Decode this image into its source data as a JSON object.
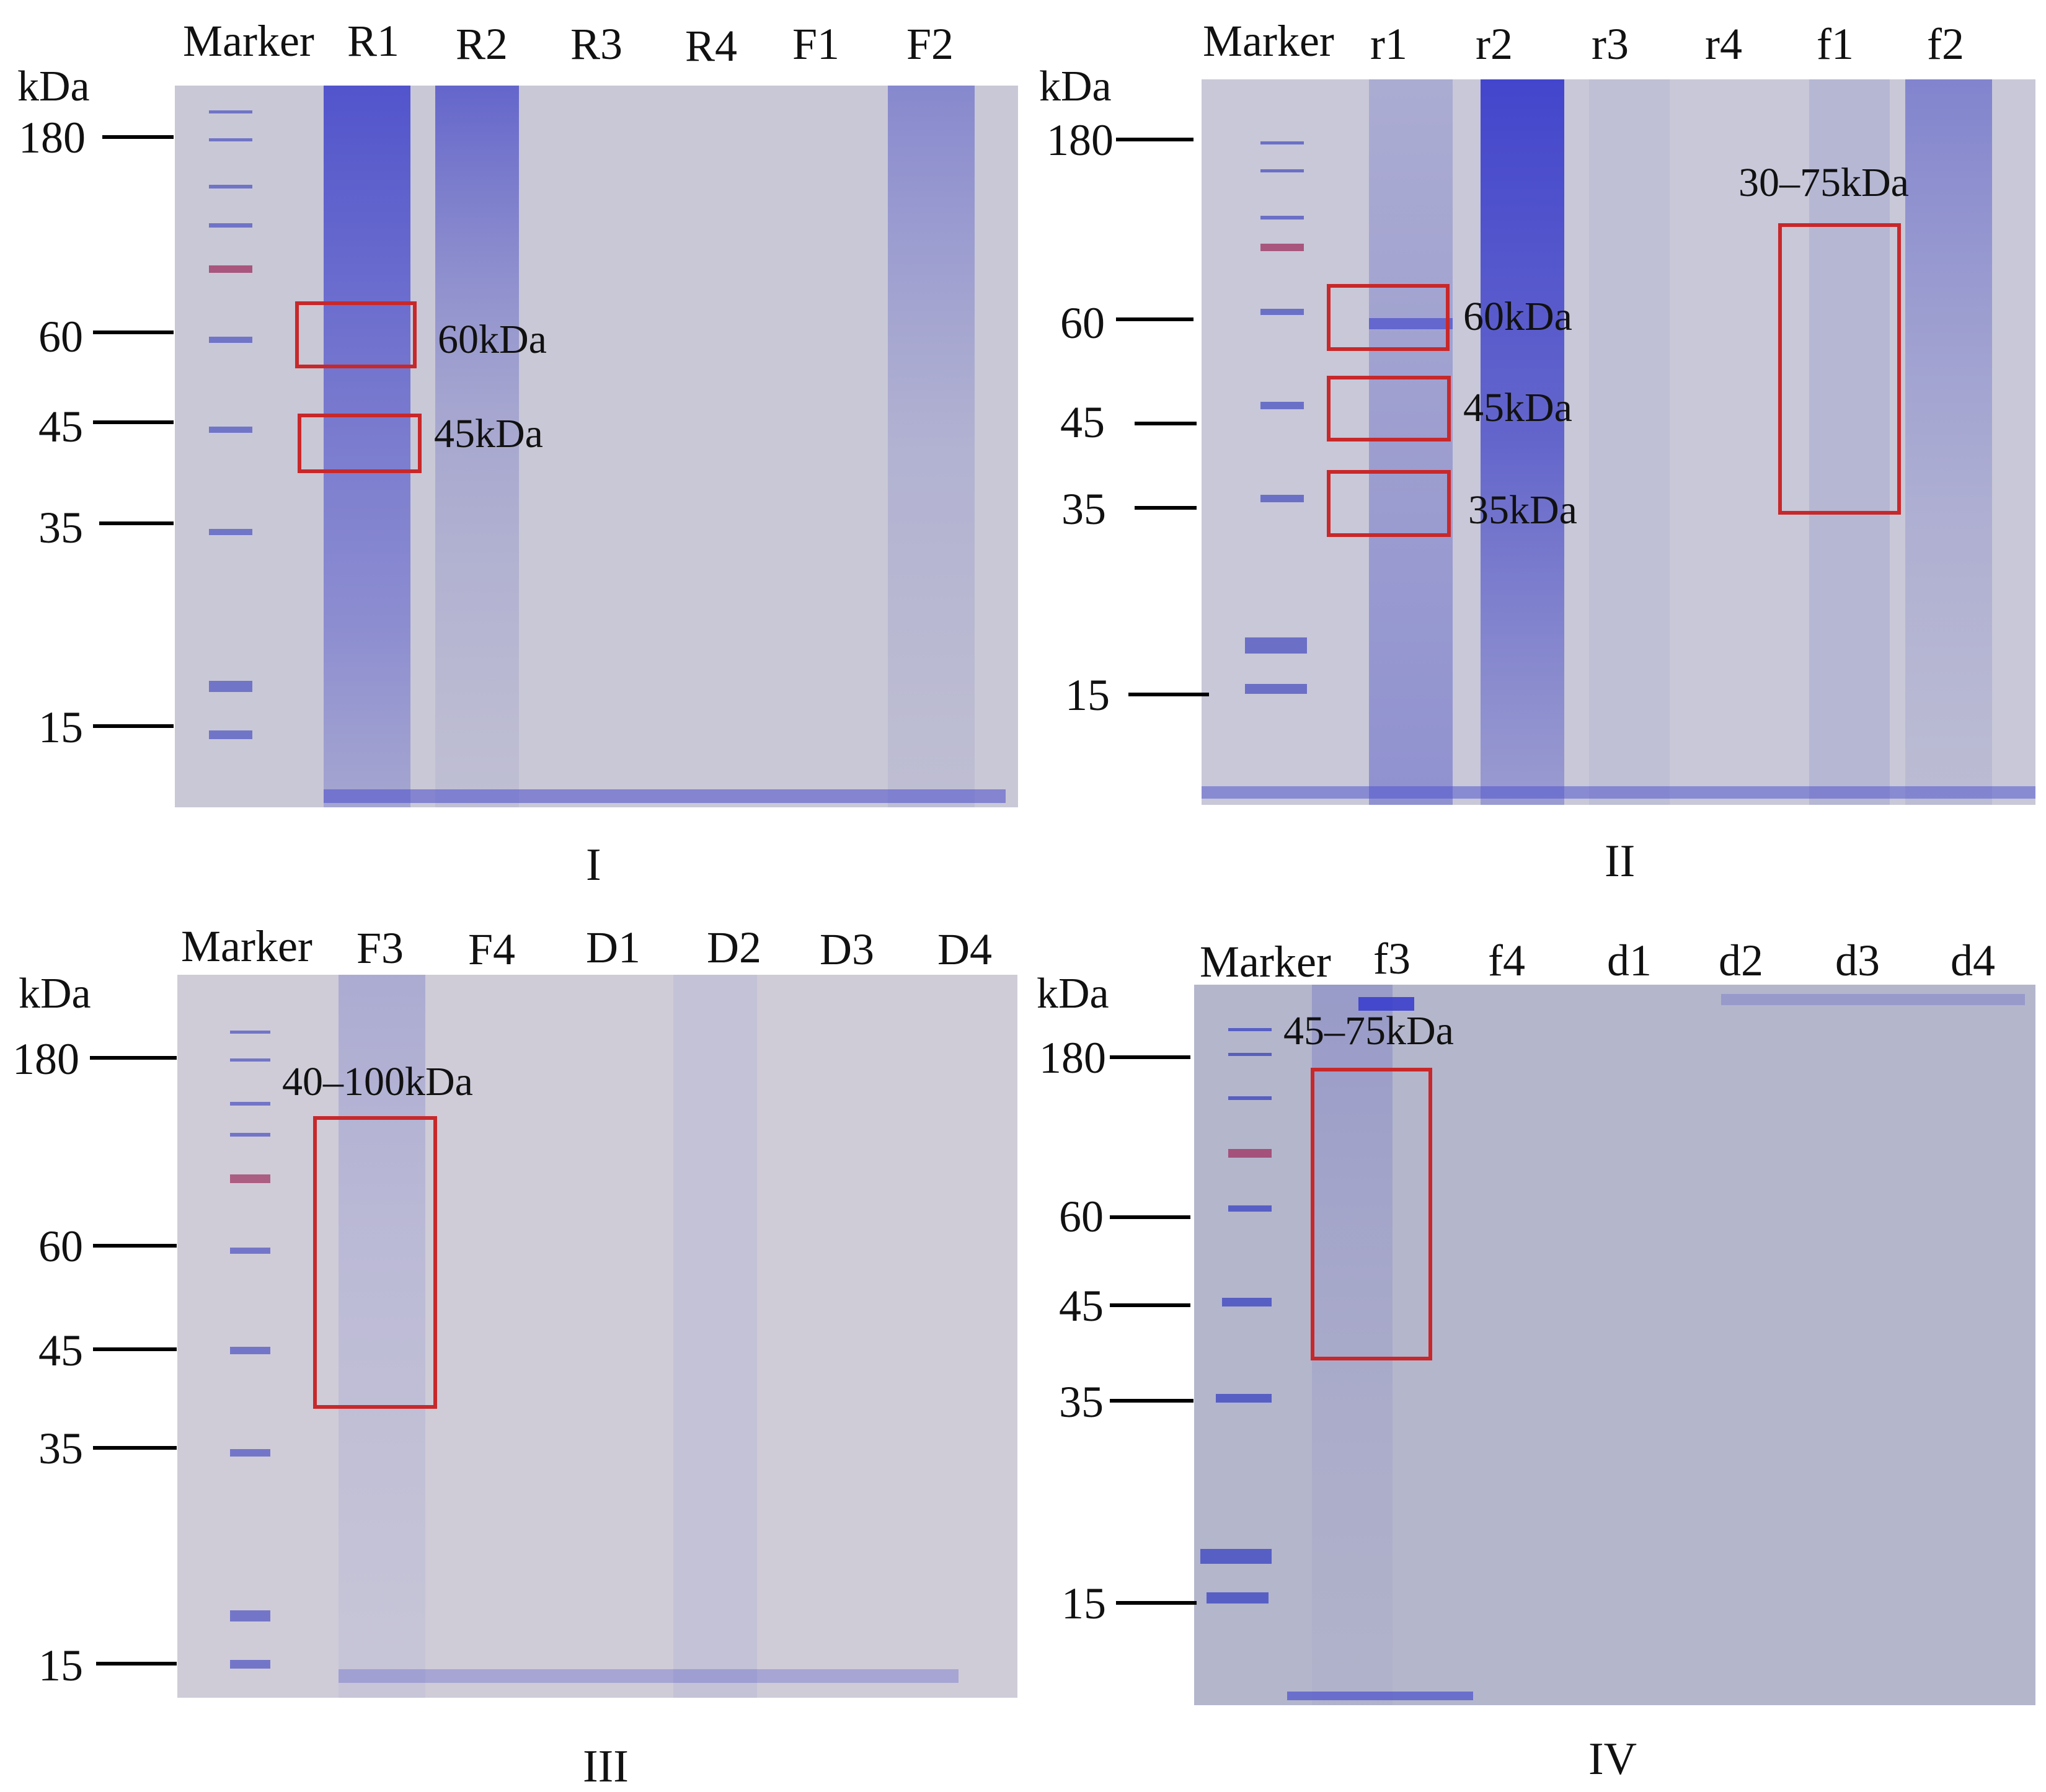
{
  "panels": [
    {
      "id": "I",
      "label": "I",
      "unit": "kDa",
      "lanes": [
        "Marker",
        "R1",
        "R2",
        "R3",
        "R4",
        "F1",
        "F2"
      ],
      "markers": [
        "180",
        "60",
        "45",
        "35",
        "15"
      ],
      "annotations": [
        "60kDa",
        "45kDa"
      ]
    },
    {
      "id": "II",
      "label": "II",
      "unit": "kDa",
      "lanes": [
        "Marker",
        "r1",
        "r2",
        "r3",
        "r4",
        "f1",
        "f2"
      ],
      "markers": [
        "180",
        "60",
        "45",
        "35",
        "15"
      ],
      "annotations": [
        "60kDa",
        "45kDa",
        "35kDa",
        "30–75kDa"
      ]
    },
    {
      "id": "III",
      "label": "III",
      "unit": "kDa",
      "lanes": [
        "Marker",
        "F3",
        "F4",
        "D1",
        "D2",
        "D3",
        "D4"
      ],
      "markers": [
        "180",
        "60",
        "45",
        "35",
        "15"
      ],
      "annotations": [
        "40–100kDa"
      ]
    },
    {
      "id": "IV",
      "label": "IV",
      "unit": "kDa",
      "lanes": [
        "Marker",
        "f3",
        "f4",
        "d1",
        "d2",
        "d3",
        "d4"
      ],
      "markers": [
        "180",
        "60",
        "45",
        "35",
        "15"
      ],
      "annotations": [
        "45–75kDa"
      ]
    }
  ],
  "colors": {
    "gel_bg": "#c9c8d6",
    "stain": "#4b4ecb",
    "ladder_red": "#a03a66",
    "box": "#c8282a"
  }
}
